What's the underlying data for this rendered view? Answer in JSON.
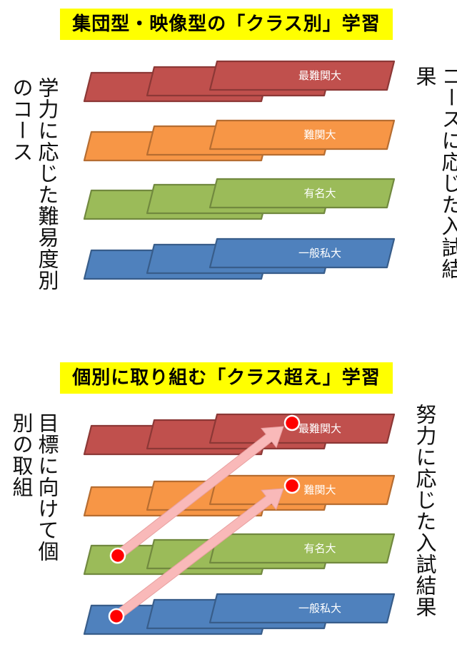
{
  "top_section": {
    "banner": "集団型・映像型の「クラス別」学習",
    "left_label": "学力に応じた難易度別のコース",
    "right_label": "コースに応じた入試結果"
  },
  "bottom_section": {
    "banner": "個別に取り組む「クラス超え」学習",
    "left_label": "目標に向けて個別の取組",
    "right_label": "努力に応じた入試結果"
  },
  "courses": [
    {
      "label": "最難関大",
      "fill": "#c0504d",
      "stroke": "#8c3836"
    },
    {
      "label": "難関大",
      "fill": "#f79646",
      "stroke": "#b66d31"
    },
    {
      "label": "有名大",
      "fill": "#9bbb59",
      "stroke": "#71893f"
    },
    {
      "label": "一般私大",
      "fill": "#4f81bd",
      "stroke": "#385d8a"
    }
  ],
  "arrow_color": "#f9b9b9",
  "dot_color": "#ff0000"
}
